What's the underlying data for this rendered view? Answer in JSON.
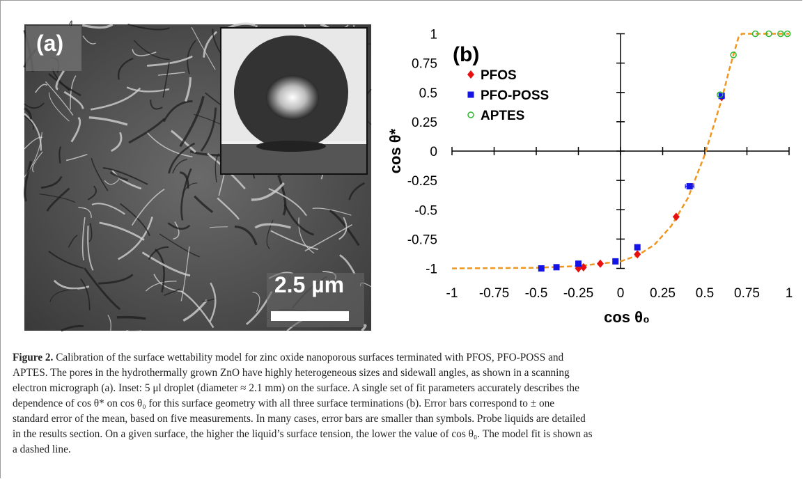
{
  "panel_a": {
    "label": "(a)",
    "scale_bar": "2.5 µm"
  },
  "chart_data": {
    "type": "scatter",
    "panel_label": "(b)",
    "x_label": "cos θ₀",
    "y_label": "cos θ*",
    "xlim": [
      -1,
      1
    ],
    "ylim": [
      -1,
      1
    ],
    "xticks": [
      -1,
      -0.75,
      -0.5,
      -0.25,
      0,
      0.25,
      0.5,
      0.75,
      1
    ],
    "yticks": [
      -1,
      -0.75,
      -0.5,
      -0.25,
      0,
      0.25,
      0.5,
      0.75,
      1
    ],
    "series": [
      {
        "name": "PFOS",
        "color": "#e8100f",
        "marker": "diamond",
        "x": [
          -0.25,
          -0.22,
          -0.12,
          0.1,
          0.33,
          0.6
        ],
        "values": [
          -1.0,
          -0.99,
          -0.96,
          -0.88,
          -0.56,
          0.46
        ]
      },
      {
        "name": "PFO-POSS",
        "color": "#1414e6",
        "marker": "square",
        "x": [
          -0.47,
          -0.38,
          -0.25,
          -0.03,
          0.1,
          0.41,
          0.6
        ],
        "values": [
          -1.0,
          -0.99,
          -0.96,
          -0.94,
          -0.82,
          -0.3,
          0.47
        ],
        "x_errors": [
          null,
          null,
          null,
          null,
          null,
          0.025,
          null
        ]
      },
      {
        "name": "APTES",
        "color": "#2db82d",
        "marker": "open-circle",
        "x": [
          0.59,
          0.67,
          0.8,
          0.88,
          0.95,
          0.99
        ],
        "values": [
          0.48,
          0.82,
          1,
          1,
          1,
          1
        ]
      }
    ],
    "fit": {
      "color": "#f0961e",
      "x": [
        -1,
        -0.5,
        -0.25,
        0,
        0.1,
        0.2,
        0.3,
        0.4,
        0.5,
        0.6,
        0.65,
        0.7,
        0.72,
        1
      ],
      "values": [
        -1,
        -0.995,
        -0.98,
        -0.94,
        -0.89,
        -0.8,
        -0.64,
        -0.4,
        -0.03,
        0.44,
        0.72,
        0.97,
        1,
        1
      ]
    }
  },
  "caption": {
    "label": "Figure 2.",
    "lines": [
      "Calibration of the surface wettability model for zinc oxide nanoporous surfaces terminated with PFOS, PFO-POSS and",
      "APTES. The pores in the hydrothermally grown ZnO have highly heterogeneous sizes and sidewall angles, as shown in a scanning",
      "electron micrograph (a). Inset: 5 μl droplet (diameter ≈ 2.1 mm) on the surface. A single set of fit parameters accurately describes the",
      "dependence of cos θ* on cos θ₀ for this surface geometry with all three surface terminations (b). Error bars correspond to ± one",
      "standard error of the mean, based on five measurements. In many cases, error bars are smaller than symbols. Probe liquids are detailed",
      "in the results section. On a given surface, the higher the liquid’s surface tension, the lower the value of cos θ₀. The model fit is shown as",
      "a dashed line."
    ]
  }
}
